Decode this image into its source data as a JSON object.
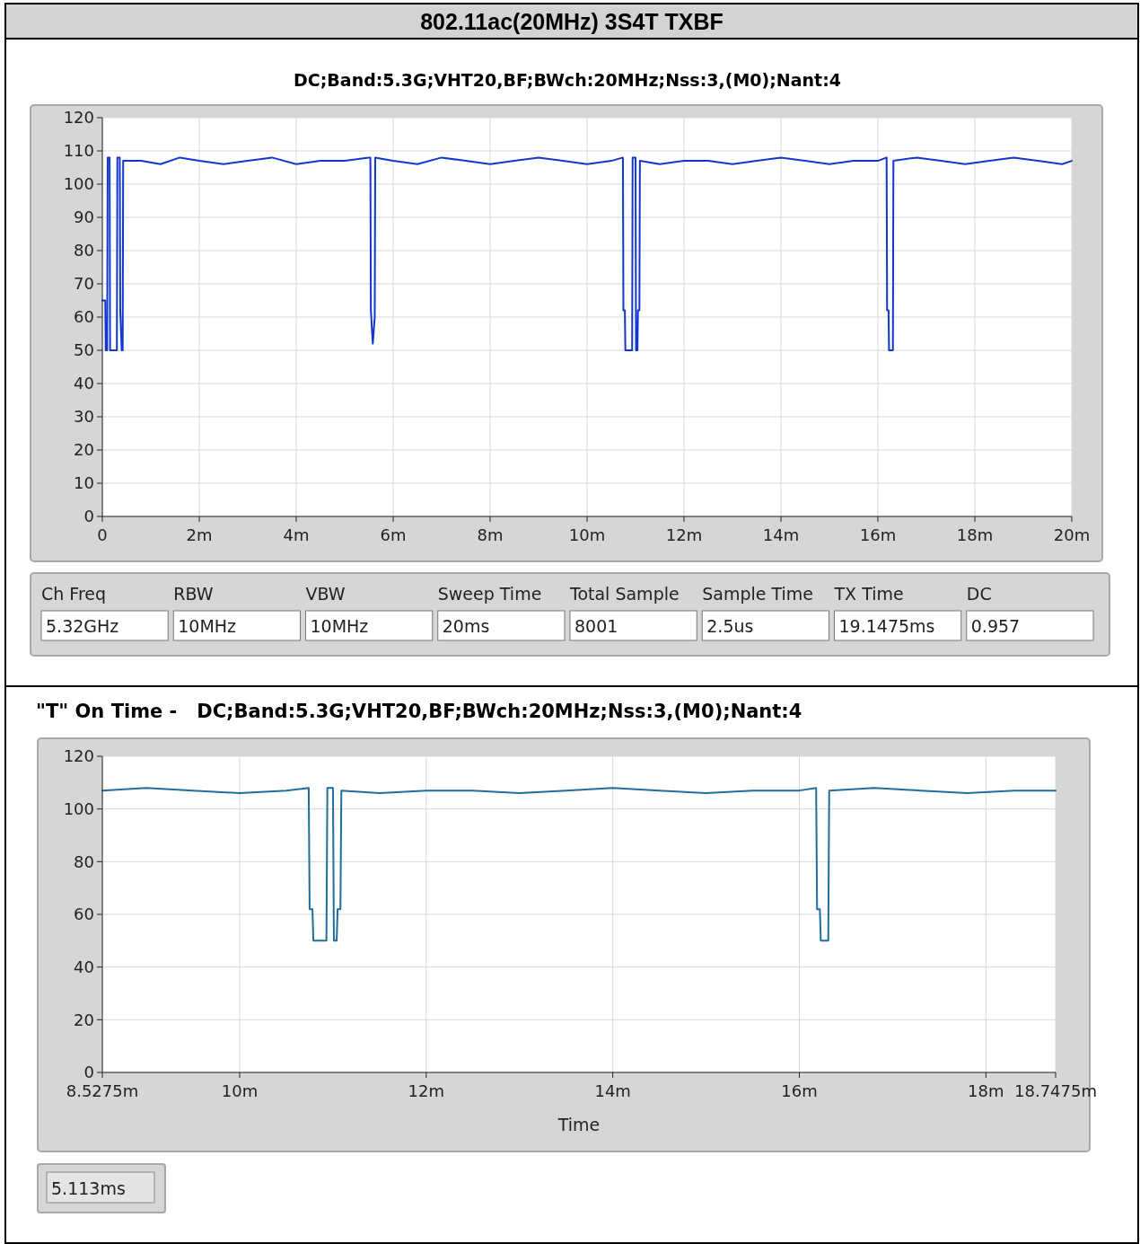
{
  "chart_data": [
    {
      "type": "line",
      "title": "802.11ac(20MHz) 3S4T TXBF",
      "subtitle": "DC;Band:5.3G;VHT20,BF;BWch:20MHz;Nss:3,(M0);Nant:4",
      "xlim": [
        0,
        20
      ],
      "ylim": [
        0,
        120
      ],
      "xticks": [
        0,
        {
          "value": 2,
          "label": "2m"
        },
        {
          "value": 4,
          "label": "4m"
        },
        {
          "value": 6,
          "label": "6m"
        },
        {
          "value": 8,
          "label": "8m"
        },
        {
          "value": 10,
          "label": "10m"
        },
        {
          "value": 12,
          "label": "12m"
        },
        {
          "value": 14,
          "label": "14m"
        },
        {
          "value": 16,
          "label": "16m"
        },
        {
          "value": 18,
          "label": "18m"
        },
        {
          "value": 20,
          "label": "20m"
        }
      ],
      "yticks": [
        0,
        10,
        20,
        30,
        40,
        50,
        60,
        70,
        80,
        90,
        100,
        110,
        120
      ],
      "grid": true,
      "marker": "none",
      "line_style": "solid",
      "series": [
        {
          "color": "#1236d0",
          "x": [
            0,
            0.06,
            0.07,
            0.1,
            0.11,
            0.15,
            0.16,
            0.3,
            0.31,
            0.36,
            0.37,
            0.4,
            0.42,
            0.43,
            0.8,
            1.2,
            1.6,
            2.0,
            2.5,
            3.0,
            3.5,
            4.0,
            4.5,
            5.0,
            5.5,
            5.53,
            5.54,
            5.58,
            5.62,
            5.63,
            6.0,
            6.5,
            7.0,
            7.5,
            8.0,
            8.5,
            9.0,
            9.5,
            10.0,
            10.5,
            10.74,
            10.75,
            10.78,
            10.79,
            10.93,
            10.94,
            11.0,
            11.01,
            11.04,
            11.05,
            11.08,
            11.09,
            11.5,
            12.0,
            12.5,
            13.0,
            13.5,
            14.0,
            14.5,
            15.0,
            15.5,
            16.0,
            16.18,
            16.19,
            16.22,
            16.23,
            16.31,
            16.32,
            16.8,
            17.3,
            17.8,
            18.3,
            18.8,
            19.3,
            19.8,
            20
          ],
          "values": [
            65,
            65,
            50,
            50,
            108,
            108,
            50,
            50,
            108,
            108,
            62,
            50,
            50,
            107,
            107,
            106,
            108,
            107,
            106,
            107,
            108,
            106,
            107,
            107,
            108,
            108,
            62,
            52,
            60,
            108,
            107,
            106,
            108,
            107,
            106,
            107,
            108,
            107,
            106,
            107,
            108,
            62,
            62,
            50,
            50,
            108,
            108,
            50,
            50,
            62,
            62,
            107,
            106,
            107,
            107,
            106,
            107,
            108,
            107,
            106,
            107,
            107,
            108,
            62,
            62,
            50,
            50,
            107,
            108,
            107,
            106,
            107,
            108,
            107,
            106,
            107
          ]
        }
      ]
    },
    {
      "type": "other",
      "categories": [
        "Ch Freq",
        "RBW",
        "VBW",
        "Sweep Time",
        "Total Sample",
        "Sample Time",
        "TX Time",
        "DC"
      ],
      "annotations": [
        "5.32GHz",
        "10MHz",
        "10MHz",
        "20ms",
        "8001",
        "2.5us",
        "19.1475ms",
        "0.957"
      ]
    },
    {
      "type": "line",
      "title": "\"T\" On Time -   DC;Band:5.3G;VHT20,BF;BWch:20MHz;Nss:3,(M0);Nant:4",
      "xlabel": "Time",
      "xlim": [
        8.5275,
        18.7475
      ],
      "ylim": [
        0,
        120
      ],
      "xticks": [
        {
          "value": 8.5275,
          "label": "8.5275m"
        },
        {
          "value": 10,
          "label": "10m"
        },
        {
          "value": 12,
          "label": "12m"
        },
        {
          "value": 14,
          "label": "14m"
        },
        {
          "value": 16,
          "label": "16m"
        },
        {
          "value": 18,
          "label": "18m"
        },
        {
          "value": 18.7475,
          "label": "18.7475m"
        }
      ],
      "yticks": [
        0,
        20,
        40,
        60,
        80,
        100,
        120
      ],
      "grid": true,
      "marker": "none",
      "line_style": "solid",
      "annotations": [
        "5.113ms"
      ],
      "series": [
        {
          "color": "#1f6e9c",
          "x": [
            8.5275,
            9.0,
            9.5,
            10.0,
            10.5,
            10.74,
            10.75,
            10.78,
            10.79,
            10.93,
            10.94,
            11.0,
            11.01,
            11.04,
            11.05,
            11.08,
            11.09,
            11.5,
            12.0,
            12.5,
            13.0,
            13.5,
            14.0,
            14.5,
            15.0,
            15.5,
            16.0,
            16.18,
            16.19,
            16.22,
            16.23,
            16.31,
            16.32,
            16.8,
            17.3,
            17.8,
            18.3,
            18.7475
          ],
          "values": [
            107,
            108,
            107,
            106,
            107,
            108,
            62,
            62,
            50,
            50,
            108,
            108,
            50,
            50,
            62,
            62,
            107,
            106,
            107,
            107,
            106,
            107,
            108,
            107,
            106,
            107,
            107,
            108,
            62,
            62,
            50,
            50,
            107,
            108,
            107,
            106,
            107,
            107
          ]
        }
      ]
    }
  ]
}
